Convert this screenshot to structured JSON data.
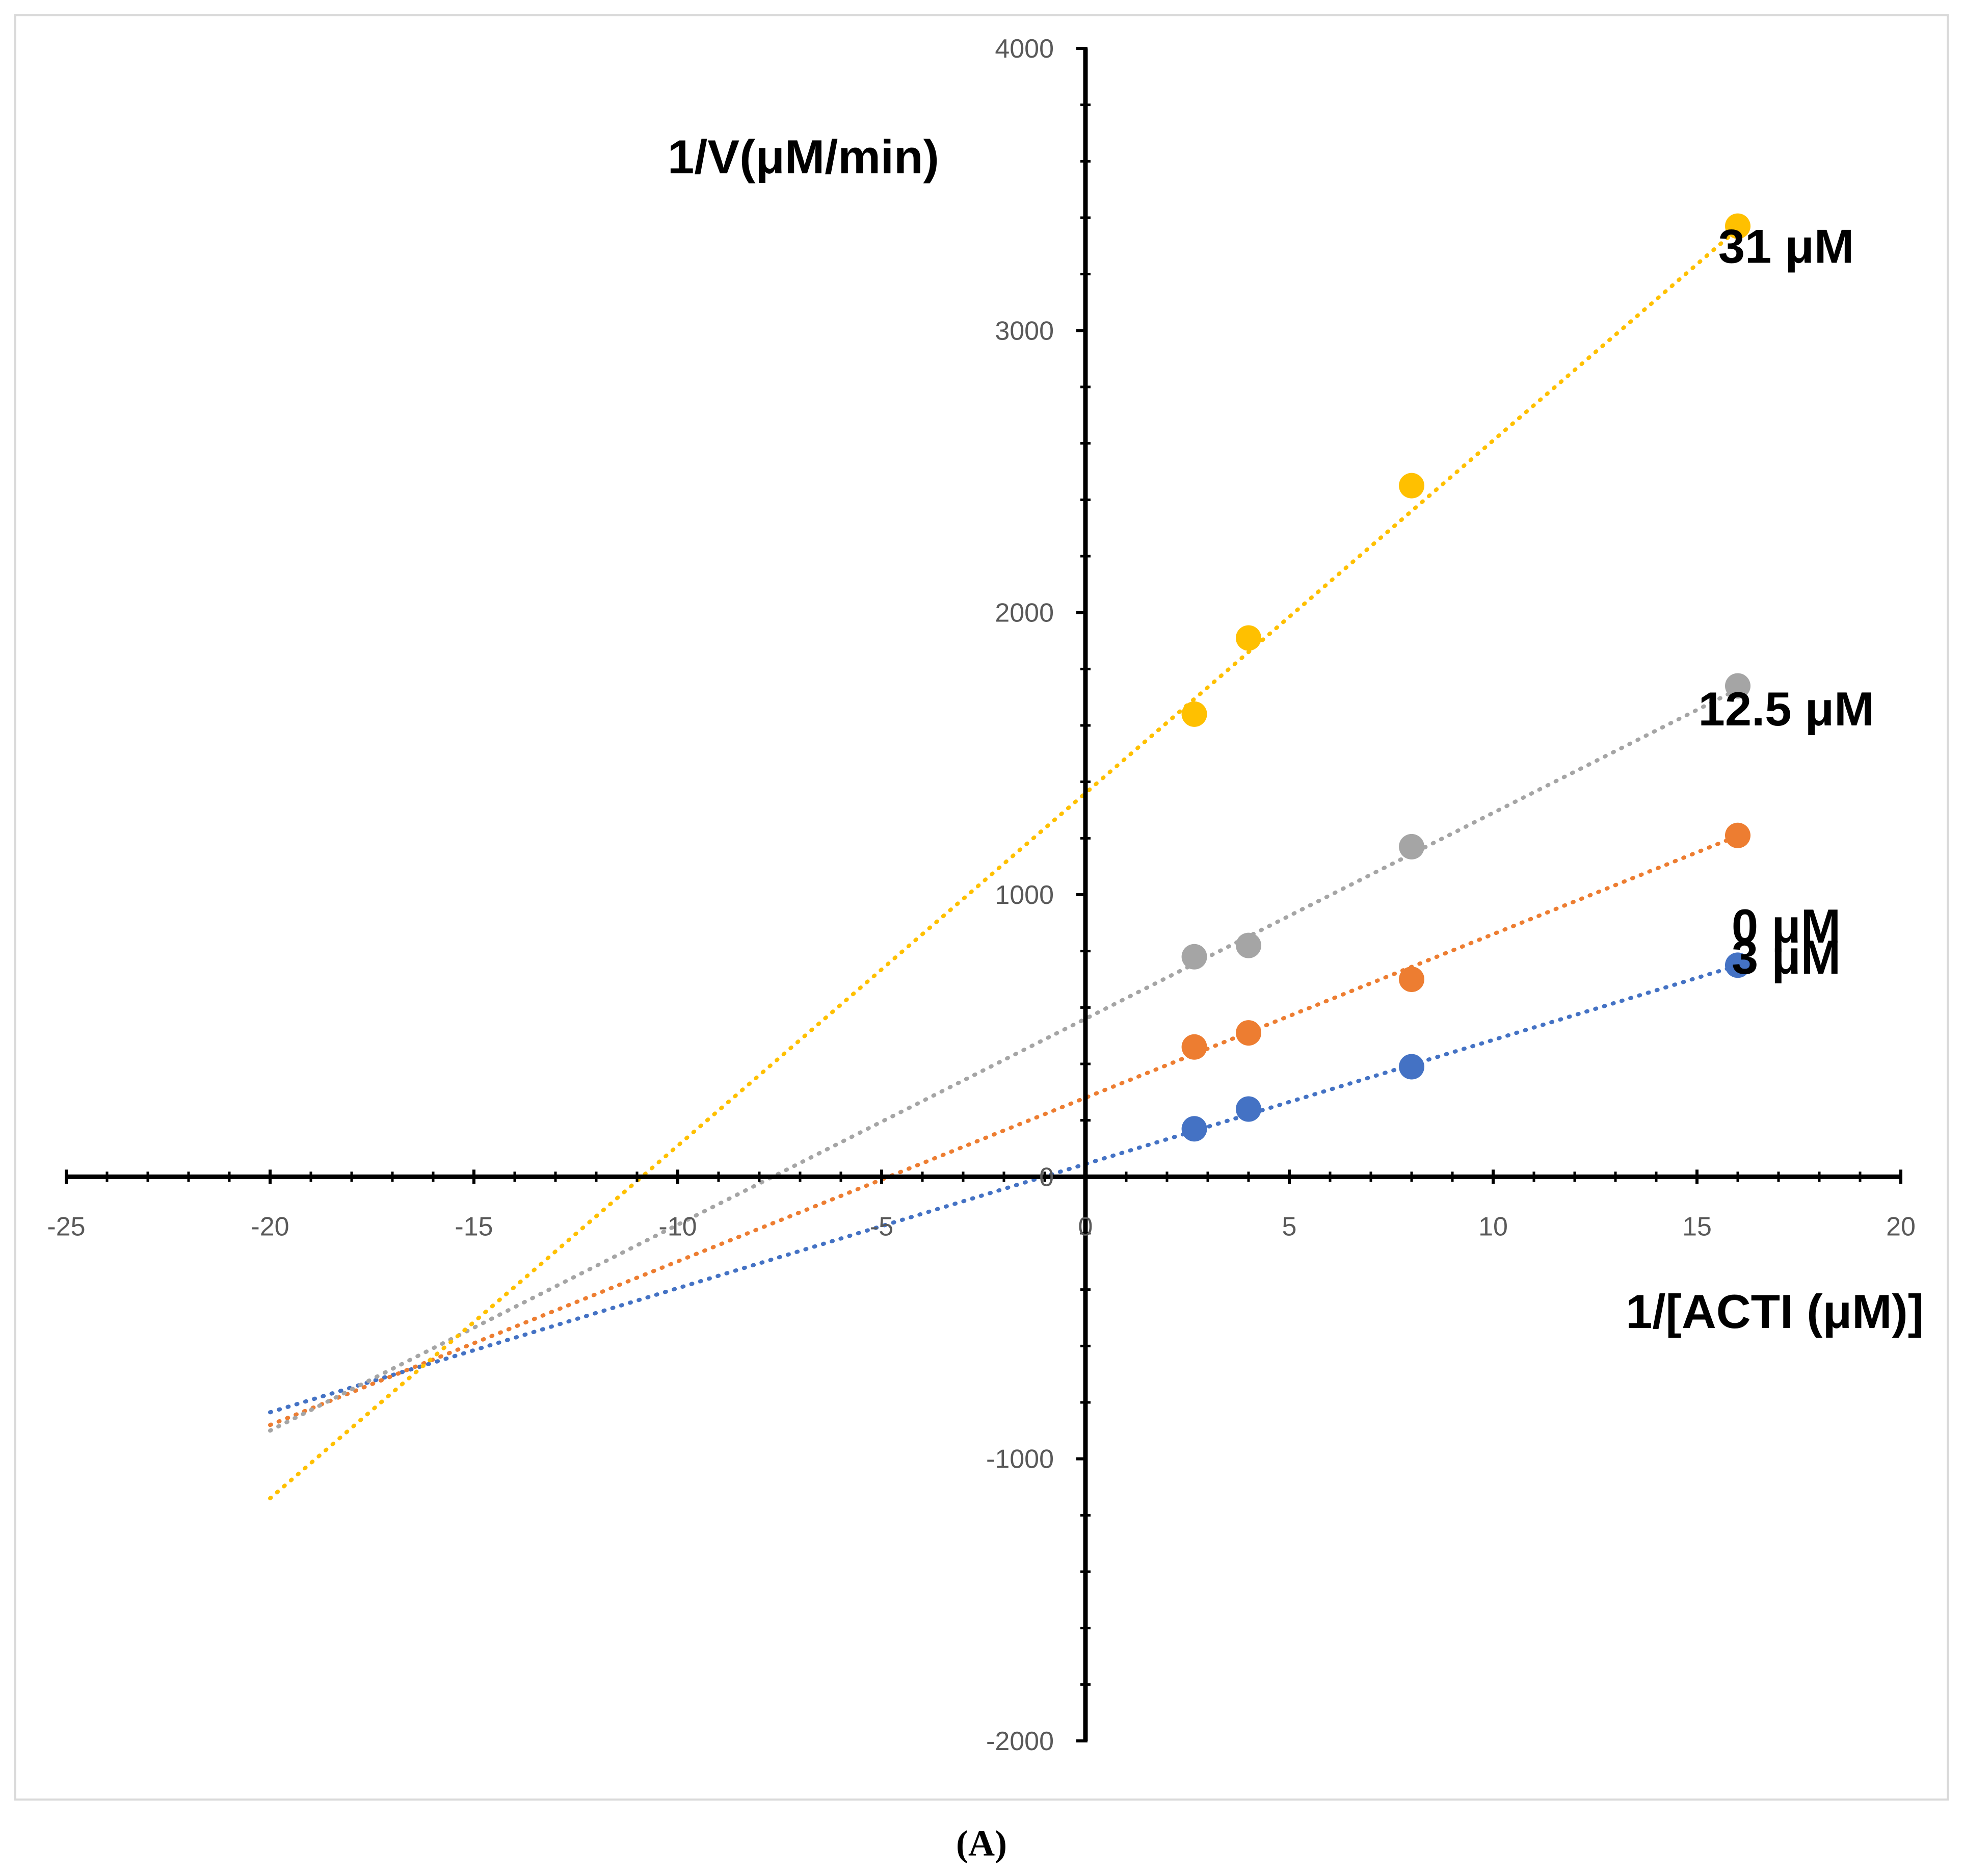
{
  "chart_data": {
    "type": "scatter",
    "title": "",
    "xlabel": "1/[ACTI (μM)]",
    "ylabel": "1/V(μM/min)",
    "xlim": [
      -25,
      20
    ],
    "ylim": [
      -2000,
      4000
    ],
    "x_ticks": [
      -25,
      -20,
      -15,
      -10,
      -5,
      0,
      5,
      10,
      15,
      20
    ],
    "y_ticks": [
      -2000,
      -1000,
      0,
      1000,
      2000,
      3000,
      4000
    ],
    "grid": false,
    "legend": "none",
    "trendline_style": "dotted",
    "trendline_range": [
      -20,
      16
    ],
    "series": [
      {
        "name": "0 μM",
        "label": "0 μM",
        "color": "#4472C4",
        "x": [
          2.67,
          4,
          8,
          16
        ],
        "y": [
          170,
          240,
          390,
          750
        ],
        "trendline": {
          "slope": 44,
          "intercept": 45
        }
      },
      {
        "name": "3 μM",
        "label": "3 μM",
        "color": "#ED7D31",
        "x": [
          2.67,
          4,
          8,
          16
        ],
        "y": [
          460,
          510,
          700,
          1210
        ],
        "trendline": {
          "slope": 58,
          "intercept": 280
        }
      },
      {
        "name": "12.5 μM",
        "label": "12.5 μM",
        "color": "#A5A5A5",
        "x": [
          2.67,
          4,
          8,
          16
        ],
        "y": [
          780,
          820,
          1170,
          1740
        ],
        "trendline": {
          "slope": 73,
          "intercept": 560
        }
      },
      {
        "name": "31 μM",
        "label": "31 μM",
        "color": "#FFC000",
        "x": [
          2.67,
          4,
          8,
          16
        ],
        "y": [
          1640,
          1910,
          2450,
          3370
        ],
        "trendline": {
          "slope": 125,
          "intercept": 1360
        }
      }
    ]
  },
  "caption": "(A)"
}
